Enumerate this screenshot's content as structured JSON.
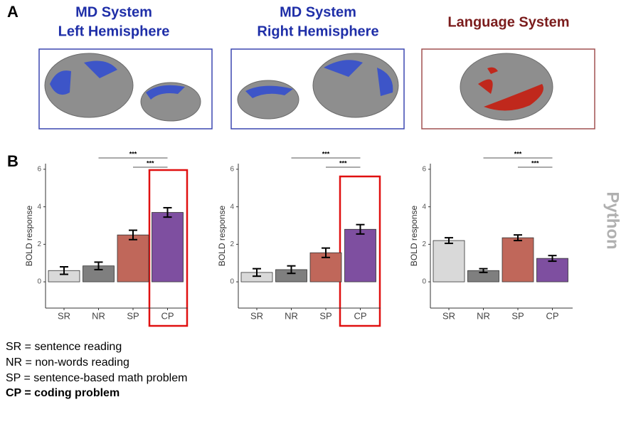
{
  "panel_labels": [
    "A",
    "B"
  ],
  "panels": [
    {
      "lines": [
        "MD System",
        "Left Hemisphere"
      ],
      "color": "#1f2fa8"
    },
    {
      "lines": [
        "MD System",
        "Right Hemisphere"
      ],
      "color": "#1f2fa8"
    },
    {
      "lines": [
        "Language System"
      ],
      "color": "#7b1c1c"
    }
  ],
  "side_label": "Python",
  "legend_lines": [
    "SR = sentence reading",
    "NR = non-words reading",
    "SP = sentence-based math problem",
    "CP = coding problem"
  ],
  "chart_data": [
    {
      "type": "bar",
      "ylabel": "BOLD response",
      "categories": [
        "SR",
        "NR",
        "SP",
        "CP"
      ],
      "values": [
        0.6,
        0.85,
        2.5,
        3.7
      ],
      "errors": [
        0.2,
        0.2,
        0.25,
        0.25
      ],
      "colors": [
        "#d9d9d9",
        "#7f7f7f",
        "#c0675a",
        "#7e4fa0"
      ],
      "ylim": [
        -1.4,
        6.3
      ],
      "yticks": [
        0,
        2,
        4,
        6
      ],
      "annotations": [
        {
          "label": "***",
          "from": "NR",
          "to": "CP"
        },
        {
          "label": "***",
          "from": "SP",
          "to": "CP"
        }
      ]
    },
    {
      "type": "bar",
      "ylabel": "BOLD response",
      "categories": [
        "SR",
        "NR",
        "SP",
        "CP"
      ],
      "values": [
        0.5,
        0.65,
        1.55,
        2.8
      ],
      "errors": [
        0.2,
        0.2,
        0.25,
        0.25
      ],
      "colors": [
        "#d9d9d9",
        "#7f7f7f",
        "#c0675a",
        "#7e4fa0"
      ],
      "ylim": [
        -1.4,
        6.3
      ],
      "yticks": [
        0,
        2,
        4,
        6
      ],
      "annotations": [
        {
          "label": "***",
          "from": "NR",
          "to": "CP"
        },
        {
          "label": "***",
          "from": "SP",
          "to": "CP"
        }
      ]
    },
    {
      "type": "bar",
      "ylabel": "BOLD response",
      "categories": [
        "SR",
        "NR",
        "SP",
        "CP"
      ],
      "values": [
        2.2,
        0.6,
        2.35,
        1.25
      ],
      "errors": [
        0.15,
        0.1,
        0.15,
        0.15
      ],
      "colors": [
        "#d9d9d9",
        "#7f7f7f",
        "#c0675a",
        "#7e4fa0"
      ],
      "ylim": [
        -1.4,
        6.3
      ],
      "yticks": [
        0,
        2,
        4,
        6
      ],
      "annotations": [
        {
          "label": "***",
          "from": "NR",
          "to": "CP"
        },
        {
          "label": "***",
          "from": "SP",
          "to": "CP"
        }
      ]
    }
  ]
}
